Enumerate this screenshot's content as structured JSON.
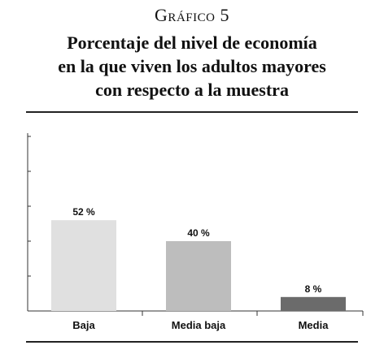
{
  "figure": {
    "caption": "Gráfico 5",
    "title_lines": [
      "Porcentaje del nivel de economía",
      "en la que viven los adultos mayores",
      "con respecto a la muestra"
    ]
  },
  "chart_data": {
    "type": "bar",
    "categories": [
      "Baja",
      "Media baja",
      "Media"
    ],
    "values": [
      52,
      40,
      8
    ],
    "value_labels": [
      "52 %",
      "40 %",
      "8 %"
    ],
    "colors": [
      "#e0e0e0",
      "#bdbdbd",
      "#6b6b6b"
    ],
    "ylim": [
      0,
      100
    ],
    "grid": false,
    "legend": "none"
  }
}
